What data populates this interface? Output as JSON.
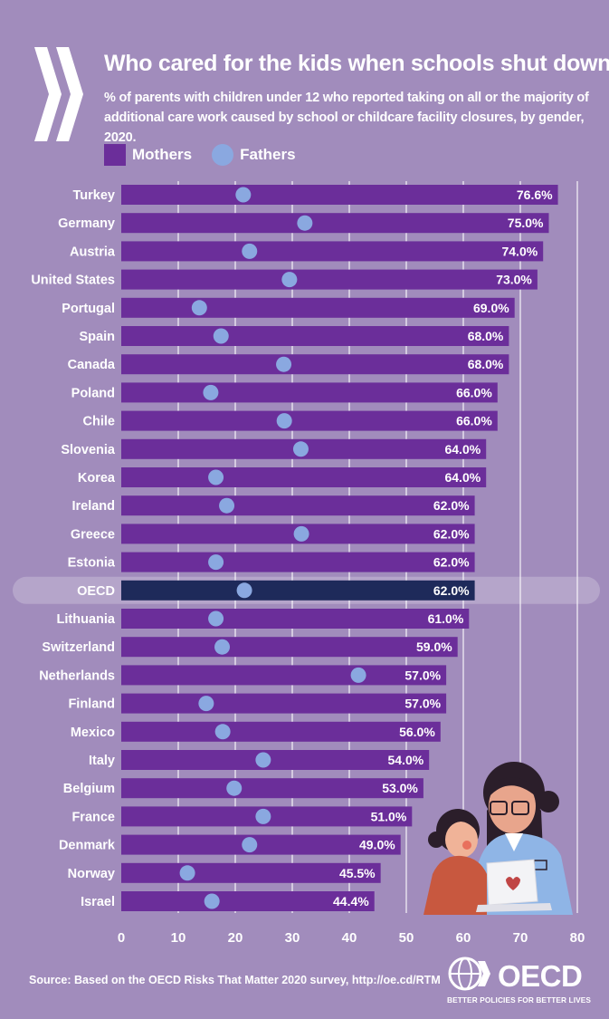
{
  "title": "Who cared for the kids when schools shut down?",
  "subtitle": "% of parents with children under 12 who reported taking on all or the majority of additional care work caused by school or childcare facility closures, by gender, 2020.",
  "legend": {
    "mothers": "Mothers",
    "fathers": "Fathers"
  },
  "colors": {
    "background": "#a18cbc",
    "mothers": "#6b2e9a",
    "fathers": "#8aa8e0",
    "oecd_bar": "#1e2a5a"
  },
  "source": "Source: Based on the OECD Risks That Matter 2020 survey, http://oe.cd/RTM",
  "logo": {
    "word": "OECD",
    "tagline": "BETTER POLICIES FOR BETTER LIVES"
  },
  "chart_data": {
    "type": "bar",
    "orientation": "horizontal",
    "xlim": [
      0,
      80
    ],
    "xticks": [
      0,
      10,
      20,
      30,
      40,
      50,
      60,
      70,
      80
    ],
    "grid": true,
    "legend_position": "top-left",
    "highlight": "OECD",
    "categories": [
      "Turkey",
      "Germany",
      "Austria",
      "United States",
      "Portugal",
      "Spain",
      "Canada",
      "Poland",
      "Chile",
      "Slovenia",
      "Korea",
      "Ireland",
      "Greece",
      "Estonia",
      "OECD",
      "Lithuania",
      "Switzerland",
      "Netherlands",
      "Finland",
      "Mexico",
      "Italy",
      "Belgium",
      "France",
      "Denmark",
      "Norway",
      "Israel"
    ],
    "series": [
      {
        "name": "Mothers",
        "values": [
          76.6,
          75.0,
          74.0,
          73.0,
          69.0,
          68.0,
          68.0,
          66.0,
          66.0,
          64.0,
          64.0,
          62.0,
          62.0,
          62.0,
          62.0,
          61.0,
          59.0,
          57.0,
          57.0,
          56.0,
          54.0,
          53.0,
          51.0,
          49.0,
          45.5,
          44.4
        ],
        "labels": [
          "76.6%",
          "75.0%",
          "74.0%",
          "73.0%",
          "69.0%",
          "68.0%",
          "68.0%",
          "66.0%",
          "66.0%",
          "64.0%",
          "64.0%",
          "62.0%",
          "62.0%",
          "62.0%",
          "62.0%",
          "61.0%",
          "59.0%",
          "57.0%",
          "57.0%",
          "56.0%",
          "54.0%",
          "53.0%",
          "51.0%",
          "49.0%",
          "45.5%",
          "44.4%"
        ]
      },
      {
        "name": "Fathers",
        "values": [
          21.4,
          32.2,
          22.5,
          29.5,
          13.7,
          17.5,
          28.5,
          15.7,
          28.6,
          31.5,
          16.6,
          18.5,
          31.6,
          16.6,
          21.6,
          16.6,
          17.7,
          41.6,
          14.9,
          17.8,
          24.9,
          19.8,
          24.9,
          22.5,
          11.6,
          15.9
        ]
      }
    ]
  }
}
